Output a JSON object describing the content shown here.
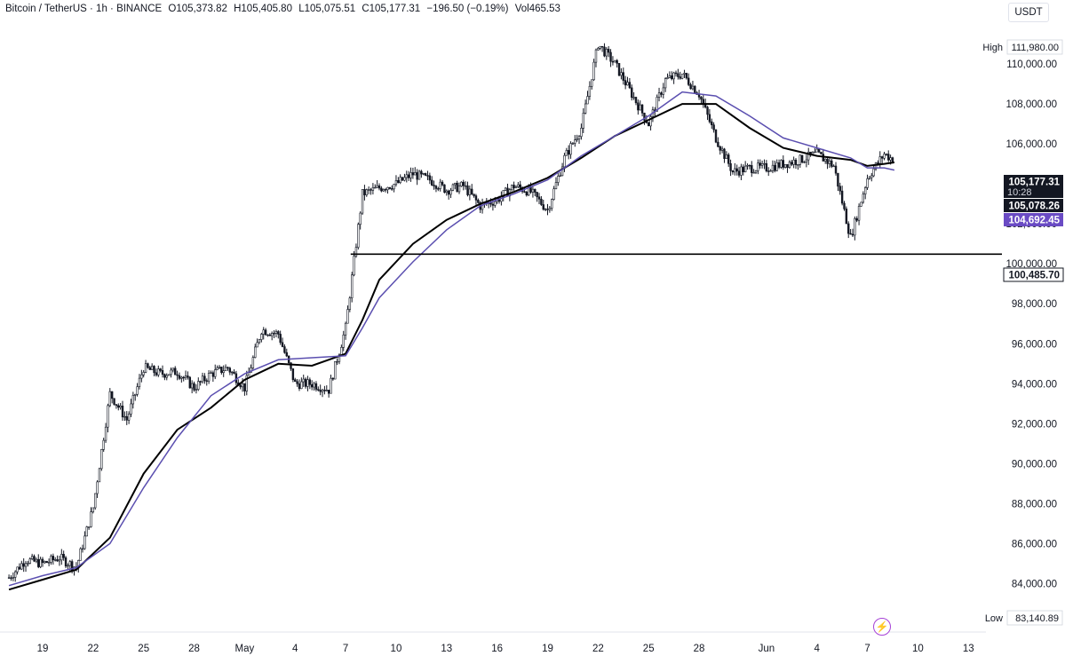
{
  "header": {
    "symbol": "Bitcoin / TetherUS · 1h · BINANCE",
    "open": "O105,373.82",
    "high": "H105,405.80",
    "low": "L105,075.51",
    "close": "C105,177.31",
    "change": "−196.50 (−0.19%)",
    "volume": "Vol465.53",
    "currency": "USDT"
  },
  "colors": {
    "candle": "#131722",
    "ma_fast": "#000000",
    "ma_slow": "#5b4fb0",
    "price_label_bg": "#131722",
    "ma_slow_label_bg": "#6a4bc4",
    "grid": "#ffffff",
    "accent": "#a642d6"
  },
  "chart_data": {
    "type": "candlestick",
    "ylim": [
      82600,
      112600
    ],
    "y_ticks": [
      84000,
      86000,
      88000,
      90000,
      92000,
      94000,
      96000,
      98000,
      100000,
      102000,
      104000,
      106000,
      108000,
      110000
    ],
    "y_tick_labels": [
      "84,000.00",
      "86,000.00",
      "88,000.00",
      "90,000.00",
      "92,000.00",
      "94,000.00",
      "96,000.00",
      "98,000.00",
      "100,000.00",
      "102,000.00",
      "104,000.00",
      "106,000.00",
      "108,000.00",
      "110,000.00"
    ],
    "x_ticks": [
      {
        "label": "19",
        "day": 0
      },
      {
        "label": "22",
        "day": 3
      },
      {
        "label": "25",
        "day": 6
      },
      {
        "label": "28",
        "day": 9
      },
      {
        "label": "May",
        "day": 12
      },
      {
        "label": "4",
        "day": 15
      },
      {
        "label": "7",
        "day": 18
      },
      {
        "label": "10",
        "day": 21
      },
      {
        "label": "13",
        "day": 24
      },
      {
        "label": "16",
        "day": 27
      },
      {
        "label": "19",
        "day": 30
      },
      {
        "label": "22",
        "day": 33
      },
      {
        "label": "25",
        "day": 36
      },
      {
        "label": "28",
        "day": 39
      },
      {
        "label": "Jun",
        "day": 43
      },
      {
        "label": "4",
        "day": 46
      },
      {
        "label": "7",
        "day": 49
      },
      {
        "label": "10",
        "day": 52
      },
      {
        "label": "13",
        "day": 55
      }
    ],
    "price_path": [
      [
        -2,
        84300
      ],
      [
        -1,
        85200
      ],
      [
        0,
        85000
      ],
      [
        1,
        85300
      ],
      [
        2,
        84800
      ],
      [
        3,
        87800
      ],
      [
        4,
        93500
      ],
      [
        5,
        92200
      ],
      [
        6,
        94800
      ],
      [
        7,
        94500
      ],
      [
        8,
        94600
      ],
      [
        9,
        93800
      ],
      [
        10,
        94500
      ],
      [
        11,
        94800
      ],
      [
        12,
        93800
      ],
      [
        13,
        96700
      ],
      [
        14,
        96500
      ],
      [
        15,
        94000
      ],
      [
        16,
        94000
      ],
      [
        17,
        93700
      ],
      [
        18,
        96800
      ],
      [
        19,
        103500
      ],
      [
        20,
        103800
      ],
      [
        21,
        104000
      ],
      [
        22,
        104500
      ],
      [
        23,
        104200
      ],
      [
        24,
        103700
      ],
      [
        25,
        103900
      ],
      [
        26,
        102900
      ],
      [
        27,
        103200
      ],
      [
        28,
        103900
      ],
      [
        29,
        103600
      ],
      [
        30,
        102700
      ],
      [
        31,
        105300
      ],
      [
        32,
        106800
      ],
      [
        33,
        111000
      ],
      [
        34,
        110000
      ],
      [
        35,
        108500
      ],
      [
        36,
        107000
      ],
      [
        37,
        109200
      ],
      [
        38,
        109500
      ],
      [
        39,
        108500
      ],
      [
        40,
        106300
      ],
      [
        41,
        104600
      ],
      [
        42,
        104800
      ],
      [
        43,
        104800
      ],
      [
        44,
        105000
      ],
      [
        45,
        105200
      ],
      [
        46,
        105500
      ],
      [
        47,
        104900
      ],
      [
        48,
        101300
      ],
      [
        49,
        104300
      ],
      [
        50,
        105500
      ],
      [
        50.6,
        105177.31
      ]
    ],
    "series": [
      {
        "name": "",
        "type": "moving-average",
        "color": "#000000",
        "points": [
          [
            -2,
            83700
          ],
          [
            0,
            84200
          ],
          [
            2,
            84700
          ],
          [
            4,
            86300
          ],
          [
            6,
            89500
          ],
          [
            8,
            91700
          ],
          [
            10,
            92800
          ],
          [
            12,
            94200
          ],
          [
            14,
            95000
          ],
          [
            16,
            94900
          ],
          [
            18,
            95500
          ],
          [
            19,
            97200
          ],
          [
            20,
            99200
          ],
          [
            22,
            101000
          ],
          [
            24,
            102200
          ],
          [
            26,
            103000
          ],
          [
            28,
            103600
          ],
          [
            30,
            104300
          ],
          [
            32,
            105300
          ],
          [
            34,
            106400
          ],
          [
            36,
            107200
          ],
          [
            38,
            108000
          ],
          [
            40,
            108000
          ],
          [
            42,
            106800
          ],
          [
            44,
            105800
          ],
          [
            46,
            105400
          ],
          [
            48,
            105200
          ],
          [
            49,
            104900
          ],
          [
            50,
            105000
          ],
          [
            50.6,
            105078.26
          ]
        ]
      },
      {
        "name": "",
        "type": "moving-average",
        "color": "#5b4fb0",
        "points": [
          [
            -2,
            83900
          ],
          [
            0,
            84400
          ],
          [
            2,
            84800
          ],
          [
            4,
            86000
          ],
          [
            6,
            88800
          ],
          [
            8,
            91300
          ],
          [
            10,
            93400
          ],
          [
            12,
            94500
          ],
          [
            14,
            95200
          ],
          [
            16,
            95300
          ],
          [
            18,
            95400
          ],
          [
            19,
            96800
          ],
          [
            20,
            98300
          ],
          [
            22,
            100100
          ],
          [
            24,
            101700
          ],
          [
            26,
            102900
          ],
          [
            28,
            103500
          ],
          [
            30,
            104200
          ],
          [
            32,
            105400
          ],
          [
            34,
            106400
          ],
          [
            36,
            107400
          ],
          [
            38,
            108600
          ],
          [
            40,
            108400
          ],
          [
            42,
            107400
          ],
          [
            44,
            106300
          ],
          [
            46,
            105800
          ],
          [
            48,
            105300
          ],
          [
            49,
            104800
          ],
          [
            50,
            104800
          ],
          [
            50.6,
            104692.45
          ]
        ]
      }
    ],
    "horizontal_line": {
      "value": 100485.7,
      "from_day": 18.3
    },
    "high": {
      "label": "High",
      "value": "111,980.00"
    },
    "low": {
      "label": "Low",
      "value": "83,140.89"
    },
    "price_labels": [
      {
        "value": 105177.31,
        "text": "105,177.31",
        "sub": "10:28",
        "style": "dark"
      },
      {
        "value": 105078.26,
        "text": "105,078.26",
        "style": "dark"
      },
      {
        "value": 104692.45,
        "text": "104,692.45",
        "style": "purple"
      },
      {
        "value": 100485.7,
        "text": "100,485.70",
        "style": "outline"
      }
    ]
  }
}
